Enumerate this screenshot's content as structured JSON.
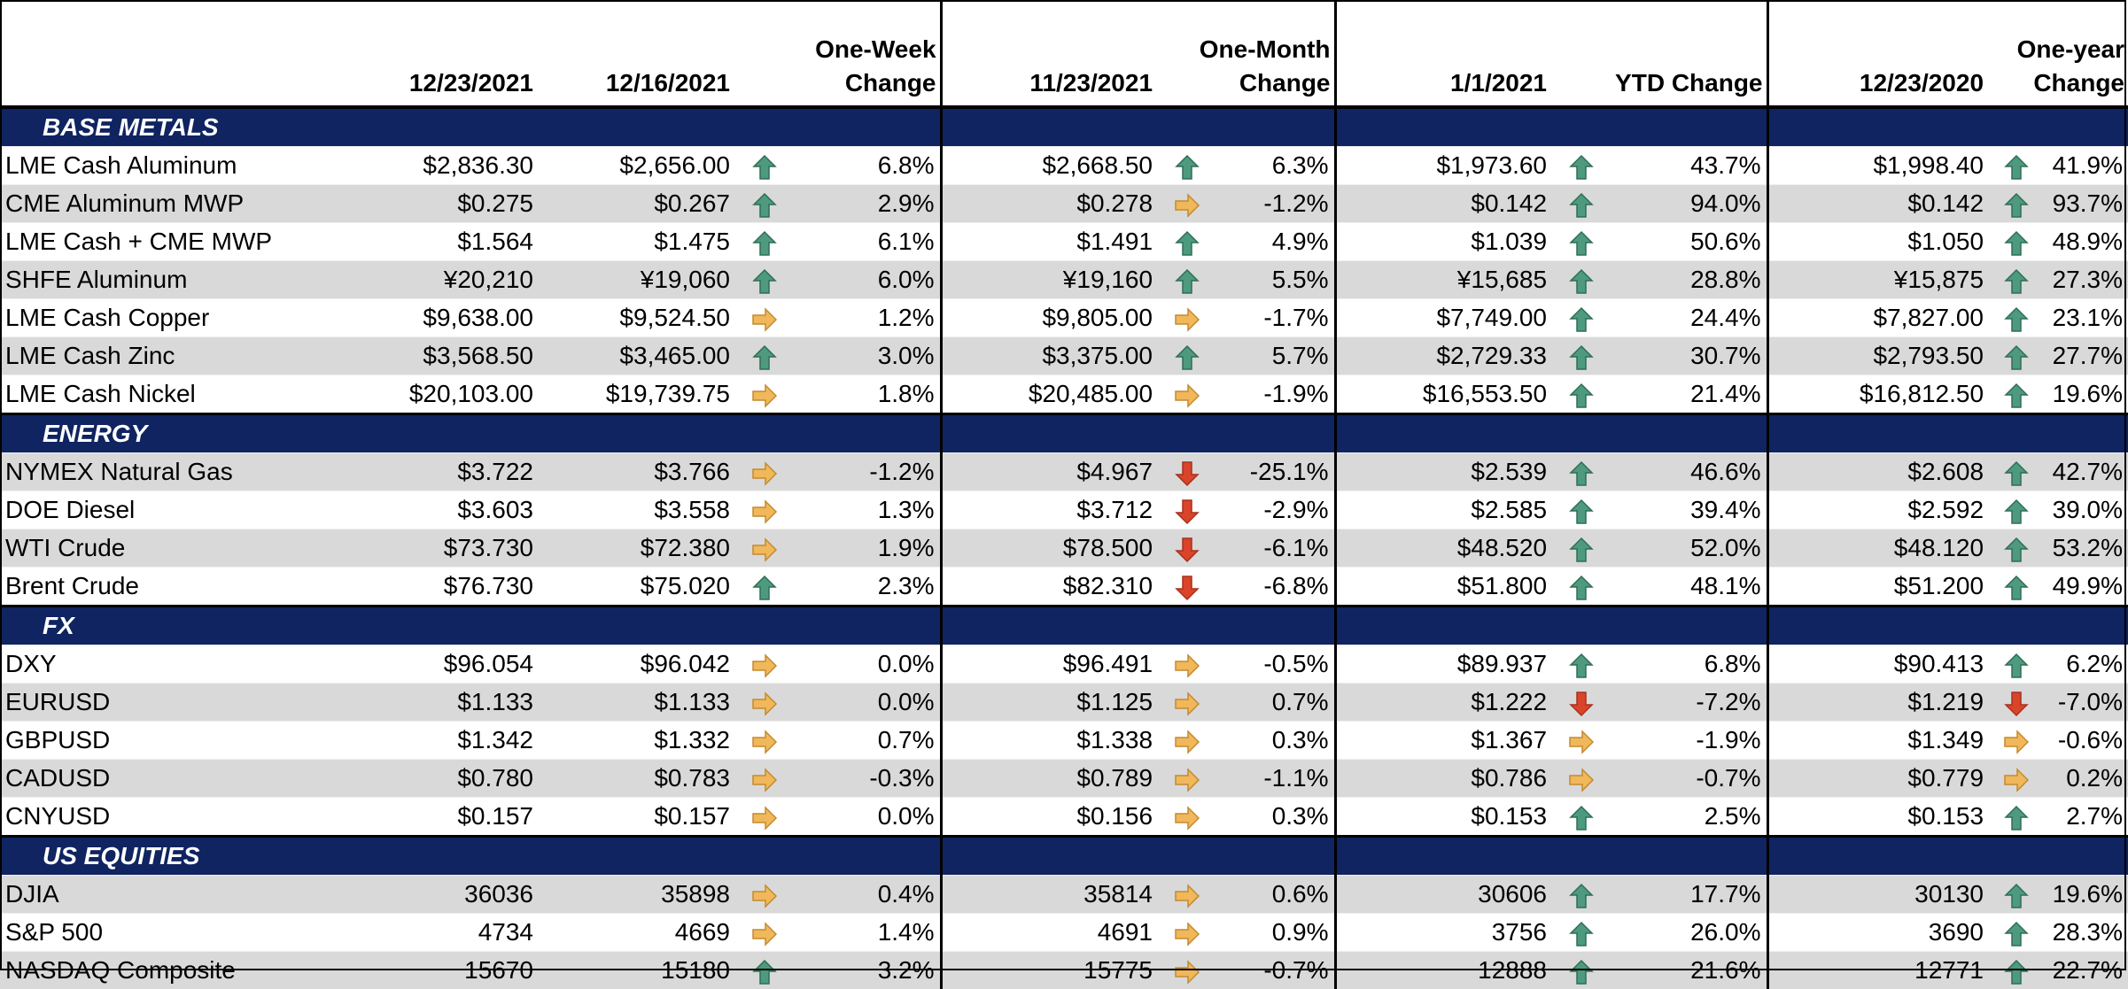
{
  "headers": {
    "date1": "12/23/2021",
    "date2": "12/16/2021",
    "week_line1": "One-Week",
    "week_line2": "Change",
    "date3": "11/23/2021",
    "month_line1": "One-Month",
    "month_line2": "Change",
    "date4": "1/1/2021",
    "ytd": "YTD Change",
    "date5": "12/23/2020",
    "year_line1": "One-year",
    "year_line2": "Change"
  },
  "colors": {
    "section_bg": "#0f2460",
    "up": "#4e9a7e",
    "flat": "#f0b85a",
    "down": "#d9442a",
    "alt_row": "#d9d9d9"
  },
  "sections": [
    {
      "title": "BASE METALS",
      "rows": [
        {
          "name": "LME Cash Aluminum",
          "v1": "$2,836.30",
          "v2": "$2,656.00",
          "a1": "up",
          "w": "6.8%",
          "v3": "$2,668.50",
          "a2": "up",
          "m": "6.3%",
          "v4": "$1,973.60",
          "a3": "up",
          "y": "43.7%",
          "v5": "$1,998.40",
          "a4": "up",
          "o": "41.9%"
        },
        {
          "name": "CME Aluminum MWP",
          "v1": "$0.275",
          "v2": "$0.267",
          "a1": "up",
          "w": "2.9%",
          "v3": "$0.278",
          "a2": "flat",
          "m": "-1.2%",
          "v4": "$0.142",
          "a3": "up",
          "y": "94.0%",
          "v5": "$0.142",
          "a4": "up",
          "o": "93.7%"
        },
        {
          "name": "LME Cash + CME MWP",
          "v1": "$1.564",
          "v2": "$1.475",
          "a1": "up",
          "w": "6.1%",
          "v3": "$1.491",
          "a2": "up",
          "m": "4.9%",
          "v4": "$1.039",
          "a3": "up",
          "y": "50.6%",
          "v5": "$1.050",
          "a4": "up",
          "o": "48.9%"
        },
        {
          "name": "SHFE Aluminum",
          "v1": "¥20,210",
          "v2": "¥19,060",
          "a1": "up",
          "w": "6.0%",
          "v3": "¥19,160",
          "a2": "up",
          "m": "5.5%",
          "v4": "¥15,685",
          "a3": "up",
          "y": "28.8%",
          "v5": "¥15,875",
          "a4": "up",
          "o": "27.3%"
        },
        {
          "name": "LME Cash Copper",
          "v1": "$9,638.00",
          "v2": "$9,524.50",
          "a1": "flat",
          "w": "1.2%",
          "v3": "$9,805.00",
          "a2": "flat",
          "m": "-1.7%",
          "v4": "$7,749.00",
          "a3": "up",
          "y": "24.4%",
          "v5": "$7,827.00",
          "a4": "up",
          "o": "23.1%"
        },
        {
          "name": "LME Cash Zinc",
          "v1": "$3,568.50",
          "v2": "$3,465.00",
          "a1": "up",
          "w": "3.0%",
          "v3": "$3,375.00",
          "a2": "up",
          "m": "5.7%",
          "v4": "$2,729.33",
          "a3": "up",
          "y": "30.7%",
          "v5": "$2,793.50",
          "a4": "up",
          "o": "27.7%"
        },
        {
          "name": "LME Cash Nickel",
          "v1": "$20,103.00",
          "v2": "$19,739.75",
          "a1": "flat",
          "w": "1.8%",
          "v3": "$20,485.00",
          "a2": "flat",
          "m": "-1.9%",
          "v4": "$16,553.50",
          "a3": "up",
          "y": "21.4%",
          "v5": "$16,812.50",
          "a4": "up",
          "o": "19.6%"
        }
      ]
    },
    {
      "title": "ENERGY",
      "rows": [
        {
          "name": "NYMEX Natural Gas",
          "v1": "$3.722",
          "v2": "$3.766",
          "a1": "flat",
          "w": "-1.2%",
          "v3": "$4.967",
          "a2": "down",
          "m": "-25.1%",
          "v4": "$2.539",
          "a3": "up",
          "y": "46.6%",
          "v5": "$2.608",
          "a4": "up",
          "o": "42.7%"
        },
        {
          "name": "DOE Diesel",
          "v1": "$3.603",
          "v2": "$3.558",
          "a1": "flat",
          "w": "1.3%",
          "v3": "$3.712",
          "a2": "down",
          "m": "-2.9%",
          "v4": "$2.585",
          "a3": "up",
          "y": "39.4%",
          "v5": "$2.592",
          "a4": "up",
          "o": "39.0%"
        },
        {
          "name": "WTI Crude",
          "v1": "$73.730",
          "v2": "$72.380",
          "a1": "flat",
          "w": "1.9%",
          "v3": "$78.500",
          "a2": "down",
          "m": "-6.1%",
          "v4": "$48.520",
          "a3": "up",
          "y": "52.0%",
          "v5": "$48.120",
          "a4": "up",
          "o": "53.2%"
        },
        {
          "name": "Brent Crude",
          "v1": "$76.730",
          "v2": "$75.020",
          "a1": "up",
          "w": "2.3%",
          "v3": "$82.310",
          "a2": "down",
          "m": "-6.8%",
          "v4": "$51.800",
          "a3": "up",
          "y": "48.1%",
          "v5": "$51.200",
          "a4": "up",
          "o": "49.9%"
        }
      ]
    },
    {
      "title": "FX",
      "rows": [
        {
          "name": "DXY",
          "v1": "$96.054",
          "v2": "$96.042",
          "a1": "flat",
          "w": "0.0%",
          "v3": "$96.491",
          "a2": "flat",
          "m": "-0.5%",
          "v4": "$89.937",
          "a3": "up",
          "y": "6.8%",
          "v5": "$90.413",
          "a4": "up",
          "o": "6.2%"
        },
        {
          "name": "EURUSD",
          "v1": "$1.133",
          "v2": "$1.133",
          "a1": "flat",
          "w": "0.0%",
          "v3": "$1.125",
          "a2": "flat",
          "m": "0.7%",
          "v4": "$1.222",
          "a3": "down",
          "y": "-7.2%",
          "v5": "$1.219",
          "a4": "down",
          "o": "-7.0%"
        },
        {
          "name": "GBPUSD",
          "v1": "$1.342",
          "v2": "$1.332",
          "a1": "flat",
          "w": "0.7%",
          "v3": "$1.338",
          "a2": "flat",
          "m": "0.3%",
          "v4": "$1.367",
          "a3": "flat",
          "y": "-1.9%",
          "v5": "$1.349",
          "a4": "flat",
          "o": "-0.6%"
        },
        {
          "name": "CADUSD",
          "v1": "$0.780",
          "v2": "$0.783",
          "a1": "flat",
          "w": "-0.3%",
          "v3": "$0.789",
          "a2": "flat",
          "m": "-1.1%",
          "v4": "$0.786",
          "a3": "flat",
          "y": "-0.7%",
          "v5": "$0.779",
          "a4": "flat",
          "o": "0.2%"
        },
        {
          "name": "CNYUSD",
          "v1": "$0.157",
          "v2": "$0.157",
          "a1": "flat",
          "w": "0.0%",
          "v3": "$0.156",
          "a2": "flat",
          "m": "0.3%",
          "v4": "$0.153",
          "a3": "up",
          "y": "2.5%",
          "v5": "$0.153",
          "a4": "up",
          "o": "2.7%"
        }
      ]
    },
    {
      "title": "US EQUITIES",
      "rows": [
        {
          "name": "DJIA",
          "v1": "36036",
          "v2": "35898",
          "a1": "flat",
          "w": "0.4%",
          "v3": "35814",
          "a2": "flat",
          "m": "0.6%",
          "v4": "30606",
          "a3": "up",
          "y": "17.7%",
          "v5": "30130",
          "a4": "up",
          "o": "19.6%"
        },
        {
          "name": "S&P 500",
          "v1": "4734",
          "v2": "4669",
          "a1": "flat",
          "w": "1.4%",
          "v3": "4691",
          "a2": "flat",
          "m": "0.9%",
          "v4": "3756",
          "a3": "up",
          "y": "26.0%",
          "v5": "3690",
          "a4": "up",
          "o": "28.3%"
        },
        {
          "name": "NASDAQ Composite",
          "v1": "15670",
          "v2": "15180",
          "a1": "up",
          "w": "3.2%",
          "v3": "15775",
          "a2": "flat",
          "m": "-0.7%",
          "v4": "12888",
          "a3": "up",
          "y": "21.6%",
          "v5": "12771",
          "a4": "up",
          "o": "22.7%"
        }
      ]
    }
  ]
}
